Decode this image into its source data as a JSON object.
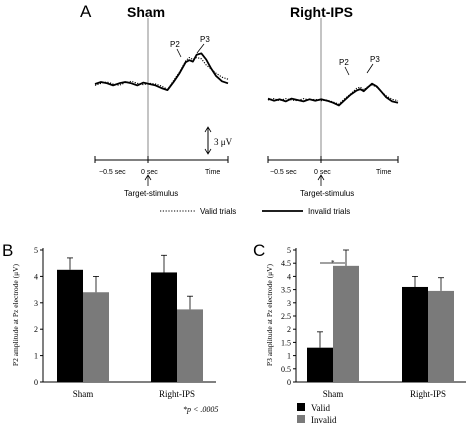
{
  "panels": {
    "A": {
      "letter": "A",
      "sham": {
        "title": "Sham",
        "p2": "P2",
        "p3": "P3",
        "x_ticks": {
          "left": "−0.5 sec",
          "zero": "0 sec",
          "right": "Time"
        },
        "stimulus_label": "Target-stimulus"
      },
      "ips": {
        "title": "Right-IPS",
        "p2": "P2",
        "p3": "P3",
        "x_ticks": {
          "left": "−0.5 sec",
          "zero": "0 sec",
          "right": "Time"
        },
        "stimulus_label": "Target-stimulus"
      },
      "scale_label": "3 μV",
      "legend": {
        "valid": "Valid trials",
        "invalid": "Invalid trials"
      }
    },
    "B": {
      "letter": "B",
      "ylabel": "P2 amplitude at Pz electrode (μV)",
      "footnote": "*p < .0005"
    },
    "C": {
      "letter": "C",
      "ylabel": "P3 amplitude at Pz electrode (μV)",
      "sig_marker": "*",
      "legend": {
        "valid": "Valid",
        "invalid": "Invalid"
      }
    }
  },
  "colors": {
    "valid": "#000000",
    "invalid": "#7a7a7a",
    "axis": "#000000"
  },
  "chart_data": [
    {
      "type": "line",
      "panel": "A",
      "subplot": "Sham",
      "x_range": [
        -0.5,
        0.6
      ],
      "series": [
        {
          "name": "Valid trials",
          "style": "dotted",
          "x": [
            -0.5,
            -0.45,
            -0.4,
            -0.35,
            -0.3,
            -0.25,
            -0.2,
            -0.15,
            -0.1,
            -0.05,
            0,
            0.05,
            0.1,
            0.15,
            0.2,
            0.25,
            0.28,
            0.31,
            0.34,
            0.38,
            0.42,
            0.46,
            0.5,
            0.55,
            0.6
          ],
          "y": [
            -0.2,
            0.1,
            0.3,
            0.0,
            -0.2,
            0.2,
            0.4,
            0.1,
            -0.1,
            0.1,
            0.0,
            -0.3,
            -0.8,
            0.5,
            1.8,
            3.4,
            3.9,
            3.6,
            3.9,
            3.7,
            2.8,
            2.2,
            1.6,
            1.0,
            0.7
          ]
        },
        {
          "name": "Invalid trials",
          "style": "solid",
          "x": [
            -0.5,
            -0.45,
            -0.4,
            -0.35,
            -0.3,
            -0.25,
            -0.2,
            -0.15,
            -0.1,
            -0.05,
            0,
            0.05,
            0.1,
            0.15,
            0.2,
            0.25,
            0.28,
            0.31,
            0.34,
            0.38,
            0.42,
            0.46,
            0.5,
            0.55,
            0.6
          ],
          "y": [
            0.0,
            0.3,
            0.1,
            -0.2,
            0.1,
            0.3,
            0.1,
            -0.2,
            0.2,
            0.0,
            -0.2,
            -0.6,
            -0.9,
            0.3,
            1.6,
            3.2,
            3.5,
            3.3,
            4.3,
            4.5,
            3.6,
            2.3,
            1.2,
            0.4,
            0.1
          ]
        }
      ]
    },
    {
      "type": "line",
      "panel": "A",
      "subplot": "Right-IPS",
      "x_range": [
        -0.5,
        0.6
      ],
      "series": [
        {
          "name": "Valid trials",
          "style": "dotted",
          "x": [
            -0.5,
            -0.45,
            -0.4,
            -0.35,
            -0.3,
            -0.25,
            -0.2,
            -0.15,
            -0.1,
            -0.05,
            0,
            0.05,
            0.1,
            0.15,
            0.2,
            0.25,
            0.28,
            0.31,
            0.34,
            0.38,
            0.42,
            0.46,
            0.5,
            0.55,
            0.6
          ],
          "y": [
            0.0,
            0.2,
            -0.1,
            0.2,
            0.0,
            -0.1,
            0.2,
            0.0,
            0.1,
            -0.1,
            0.0,
            -0.3,
            -0.6,
            0.2,
            0.9,
            1.7,
            1.9,
            1.5,
            1.9,
            2.2,
            1.9,
            1.2,
            0.6,
            0.1,
            -0.1
          ]
        },
        {
          "name": "Invalid trials",
          "style": "solid",
          "x": [
            -0.5,
            -0.45,
            -0.4,
            -0.35,
            -0.3,
            -0.25,
            -0.2,
            -0.15,
            -0.1,
            -0.05,
            0,
            0.05,
            0.1,
            0.15,
            0.2,
            0.25,
            0.28,
            0.31,
            0.34,
            0.38,
            0.42,
            0.46,
            0.5,
            0.55,
            0.6
          ],
          "y": [
            0.2,
            -0.1,
            0.1,
            -0.2,
            0.2,
            0.0,
            -0.2,
            0.1,
            -0.1,
            0.1,
            -0.1,
            -0.4,
            -0.8,
            0.0,
            0.8,
            1.4,
            1.6,
            1.3,
            1.8,
            2.4,
            2.0,
            1.2,
            0.4,
            -0.2,
            -0.4
          ]
        }
      ]
    },
    {
      "type": "bar",
      "panel": "B",
      "title": "",
      "ylabel": "P2 amplitude at Pz electrode (μV)",
      "categories": [
        "Sham",
        "Right-IPS"
      ],
      "ylim": [
        0,
        5
      ],
      "yticks": [
        0,
        1,
        2,
        3,
        4,
        5
      ],
      "series": [
        {
          "name": "Valid",
          "values": [
            4.25,
            4.15
          ],
          "errors": [
            0.45,
            0.65
          ]
        },
        {
          "name": "Invalid",
          "values": [
            3.4,
            2.75
          ],
          "errors": [
            0.6,
            0.5
          ]
        }
      ]
    },
    {
      "type": "bar",
      "panel": "C",
      "title": "",
      "ylabel": "P3 amplitude at Pz electrode (μV)",
      "categories": [
        "Sham",
        "Right-IPS"
      ],
      "ylim": [
        0,
        5
      ],
      "yticks": [
        0,
        0.5,
        1,
        1.5,
        2,
        2.5,
        3,
        3.5,
        4,
        4.5,
        5
      ],
      "legend_position": "bottom-left",
      "series": [
        {
          "name": "Valid",
          "values": [
            1.3,
            3.6
          ],
          "errors": [
            0.6,
            0.4
          ]
        },
        {
          "name": "Invalid",
          "values": [
            4.4,
            3.45
          ],
          "errors": [
            0.6,
            0.5
          ]
        }
      ]
    }
  ]
}
